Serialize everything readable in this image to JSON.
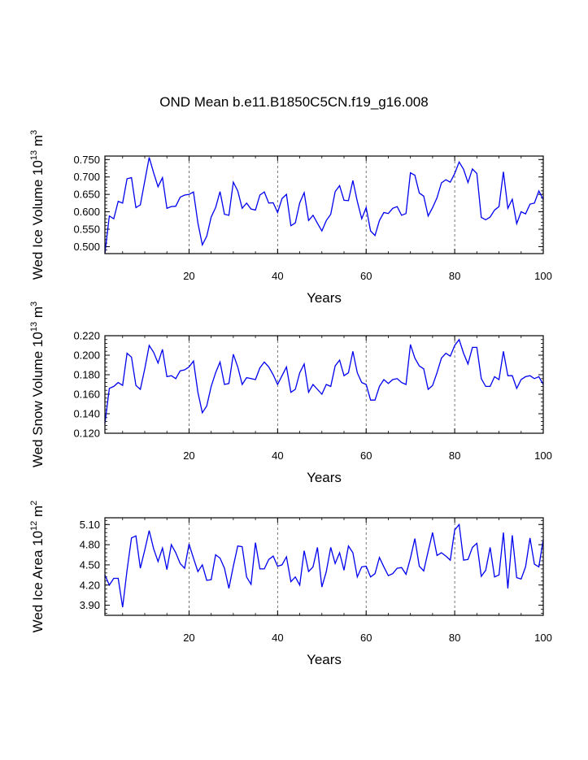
{
  "title": "OND Mean b.e11.B1850C5CN.f19_g16.008",
  "chart_data": [
    {
      "type": "line",
      "ylabel_main": "Wed Ice Volume 10",
      "ylabel_exp": "13",
      "ylabel_unit": " m",
      "ylabel_unit_exp": "3",
      "xlabel": "Years",
      "xlim": [
        1,
        100
      ],
      "ylim": [
        0.48,
        0.76
      ],
      "xticks": [
        20,
        40,
        60,
        80,
        100
      ],
      "xtick_labels": [
        "20",
        "40",
        "60",
        "80",
        "100"
      ],
      "yticks": [
        0.5,
        0.55,
        0.6,
        0.65,
        0.7,
        0.75
      ],
      "ytick_labels": [
        "0.500",
        "0.550",
        "0.600",
        "0.650",
        "0.700",
        "0.750"
      ],
      "grid_x": [
        20,
        40,
        60,
        80
      ],
      "color": "#0000ee",
      "x": [
        1,
        2,
        3,
        4,
        5,
        6,
        7,
        8,
        9,
        10,
        11,
        12,
        13,
        14,
        15,
        16,
        17,
        18,
        19,
        20,
        21,
        22,
        23,
        24,
        25,
        26,
        27,
        28,
        29,
        30,
        31,
        32,
        33,
        34,
        35,
        36,
        37,
        38,
        39,
        40,
        41,
        42,
        43,
        44,
        45,
        46,
        47,
        48,
        49,
        50,
        51,
        52,
        53,
        54,
        55,
        56,
        57,
        58,
        59,
        60,
        61,
        62,
        63,
        64,
        65,
        66,
        67,
        68,
        69,
        70,
        71,
        72,
        73,
        74,
        75,
        76,
        77,
        78,
        79,
        80,
        81,
        82,
        83,
        84,
        85,
        86,
        87,
        88,
        89,
        90,
        91,
        92,
        93,
        94,
        95,
        96,
        97,
        98,
        99,
        100
      ],
      "values": [
        0.48,
        0.588,
        0.58,
        0.63,
        0.625,
        0.695,
        0.698,
        0.612,
        0.62,
        0.688,
        0.756,
        0.712,
        0.672,
        0.698,
        0.61,
        0.615,
        0.616,
        0.642,
        0.648,
        0.65,
        0.657,
        0.568,
        0.505,
        0.53,
        0.585,
        0.612,
        0.658,
        0.593,
        0.59,
        0.685,
        0.66,
        0.61,
        0.625,
        0.608,
        0.605,
        0.648,
        0.657,
        0.625,
        0.626,
        0.598,
        0.638,
        0.65,
        0.56,
        0.568,
        0.626,
        0.655,
        0.575,
        0.59,
        0.567,
        0.545,
        0.575,
        0.593,
        0.658,
        0.675,
        0.633,
        0.632,
        0.69,
        0.63,
        0.58,
        0.612,
        0.545,
        0.532,
        0.575,
        0.598,
        0.595,
        0.61,
        0.615,
        0.59,
        0.595,
        0.712,
        0.705,
        0.654,
        0.645,
        0.588,
        0.612,
        0.64,
        0.683,
        0.692,
        0.685,
        0.71,
        0.743,
        0.722,
        0.684,
        0.723,
        0.71,
        0.584,
        0.577,
        0.585,
        0.605,
        0.615,
        0.715,
        0.61,
        0.636,
        0.566,
        0.6,
        0.594,
        0.622,
        0.625,
        0.66,
        0.635
      ]
    },
    {
      "type": "line",
      "ylabel_main": "Wed Snow Volume 10",
      "ylabel_exp": "13",
      "ylabel_unit": " m",
      "ylabel_unit_exp": "3",
      "xlabel": "Years",
      "xlim": [
        1,
        100
      ],
      "ylim": [
        0.12,
        0.22
      ],
      "xticks": [
        20,
        40,
        60,
        80,
        100
      ],
      "xtick_labels": [
        "20",
        "40",
        "60",
        "80",
        "100"
      ],
      "yticks": [
        0.12,
        0.14,
        0.16,
        0.18,
        0.2,
        0.22
      ],
      "ytick_labels": [
        "0.120",
        "0.140",
        "0.160",
        "0.180",
        "0.200",
        "0.220"
      ],
      "grid_x": [
        20,
        40,
        60,
        80
      ],
      "color": "#0000ee",
      "x": [
        1,
        2,
        3,
        4,
        5,
        6,
        7,
        8,
        9,
        10,
        11,
        12,
        13,
        14,
        15,
        16,
        17,
        18,
        19,
        20,
        21,
        22,
        23,
        24,
        25,
        26,
        27,
        28,
        29,
        30,
        31,
        32,
        33,
        34,
        35,
        36,
        37,
        38,
        39,
        40,
        41,
        42,
        43,
        44,
        45,
        46,
        47,
        48,
        49,
        50,
        51,
        52,
        53,
        54,
        55,
        56,
        57,
        58,
        59,
        60,
        61,
        62,
        63,
        64,
        65,
        66,
        67,
        68,
        69,
        70,
        71,
        72,
        73,
        74,
        75,
        76,
        77,
        78,
        79,
        80,
        81,
        82,
        83,
        84,
        85,
        86,
        87,
        88,
        89,
        90,
        91,
        92,
        93,
        94,
        95,
        96,
        97,
        98,
        99,
        100
      ],
      "values": [
        0.13,
        0.166,
        0.168,
        0.172,
        0.169,
        0.202,
        0.198,
        0.169,
        0.165,
        0.186,
        0.21,
        0.203,
        0.192,
        0.206,
        0.178,
        0.179,
        0.176,
        0.184,
        0.185,
        0.188,
        0.194,
        0.162,
        0.141,
        0.148,
        0.168,
        0.182,
        0.193,
        0.17,
        0.171,
        0.201,
        0.188,
        0.17,
        0.177,
        0.176,
        0.175,
        0.187,
        0.193,
        0.188,
        0.18,
        0.17,
        0.179,
        0.188,
        0.162,
        0.165,
        0.182,
        0.191,
        0.162,
        0.17,
        0.165,
        0.16,
        0.17,
        0.168,
        0.189,
        0.195,
        0.179,
        0.182,
        0.204,
        0.182,
        0.172,
        0.17,
        0.154,
        0.154,
        0.168,
        0.175,
        0.171,
        0.175,
        0.176,
        0.172,
        0.17,
        0.211,
        0.197,
        0.189,
        0.186,
        0.165,
        0.169,
        0.182,
        0.197,
        0.202,
        0.199,
        0.21,
        0.216,
        0.202,
        0.191,
        0.208,
        0.208,
        0.176,
        0.168,
        0.168,
        0.178,
        0.175,
        0.204,
        0.179,
        0.179,
        0.166,
        0.175,
        0.178,
        0.179,
        0.176,
        0.178,
        0.17
      ]
    },
    {
      "type": "line",
      "ylabel_main": "Wed Ice Area 10",
      "ylabel_exp": "12",
      "ylabel_unit": " m",
      "ylabel_unit_exp": "2",
      "xlabel": "Years",
      "xlim": [
        1,
        100
      ],
      "ylim": [
        3.75,
        5.2
      ],
      "xticks": [
        20,
        40,
        60,
        80,
        100
      ],
      "xtick_labels": [
        "20",
        "40",
        "60",
        "80",
        "100"
      ],
      "yticks": [
        3.9,
        4.2,
        4.5,
        4.8,
        5.1
      ],
      "ytick_labels": [
        "3.90",
        "4.20",
        "4.50",
        "4.80",
        "5.10"
      ],
      "grid_x": [
        20,
        40,
        60,
        80
      ],
      "color": "#0000ee",
      "x": [
        1,
        2,
        3,
        4,
        5,
        6,
        7,
        8,
        9,
        10,
        11,
        12,
        13,
        14,
        15,
        16,
        17,
        18,
        19,
        20,
        21,
        22,
        23,
        24,
        25,
        26,
        27,
        28,
        29,
        30,
        31,
        32,
        33,
        34,
        35,
        36,
        37,
        38,
        39,
        40,
        41,
        42,
        43,
        44,
        45,
        46,
        47,
        48,
        49,
        50,
        51,
        52,
        53,
        54,
        55,
        56,
        57,
        58,
        59,
        60,
        61,
        62,
        63,
        64,
        65,
        66,
        67,
        68,
        69,
        70,
        71,
        72,
        73,
        74,
        75,
        76,
        77,
        78,
        79,
        80,
        81,
        82,
        83,
        84,
        85,
        86,
        87,
        88,
        89,
        90,
        91,
        92,
        93,
        94,
        95,
        96,
        97,
        98,
        99,
        100
      ],
      "values": [
        4.35,
        4.2,
        4.3,
        4.3,
        3.87,
        4.42,
        4.9,
        4.93,
        4.45,
        4.72,
        5.01,
        4.74,
        4.55,
        4.75,
        4.43,
        4.8,
        4.68,
        4.52,
        4.45,
        4.81,
        4.6,
        4.4,
        4.5,
        4.27,
        4.28,
        4.65,
        4.6,
        4.45,
        4.15,
        4.48,
        4.78,
        4.77,
        4.32,
        4.21,
        4.83,
        4.44,
        4.44,
        4.58,
        4.63,
        4.48,
        4.5,
        4.62,
        4.25,
        4.32,
        4.2,
        4.71,
        4.4,
        4.47,
        4.76,
        4.17,
        4.4,
        4.76,
        4.52,
        4.68,
        4.42,
        4.78,
        4.68,
        4.32,
        4.47,
        4.48,
        4.32,
        4.37,
        4.61,
        4.47,
        4.34,
        4.37,
        4.45,
        4.46,
        4.36,
        4.6,
        4.89,
        4.48,
        4.41,
        4.7,
        4.98,
        4.64,
        4.68,
        4.63,
        4.57,
        5.02,
        5.1,
        4.57,
        4.58,
        4.76,
        4.82,
        4.33,
        4.42,
        4.76,
        4.32,
        4.35,
        4.98,
        4.15,
        4.94,
        4.31,
        4.29,
        4.47,
        4.9,
        4.51,
        4.47,
        4.88
      ]
    }
  ]
}
